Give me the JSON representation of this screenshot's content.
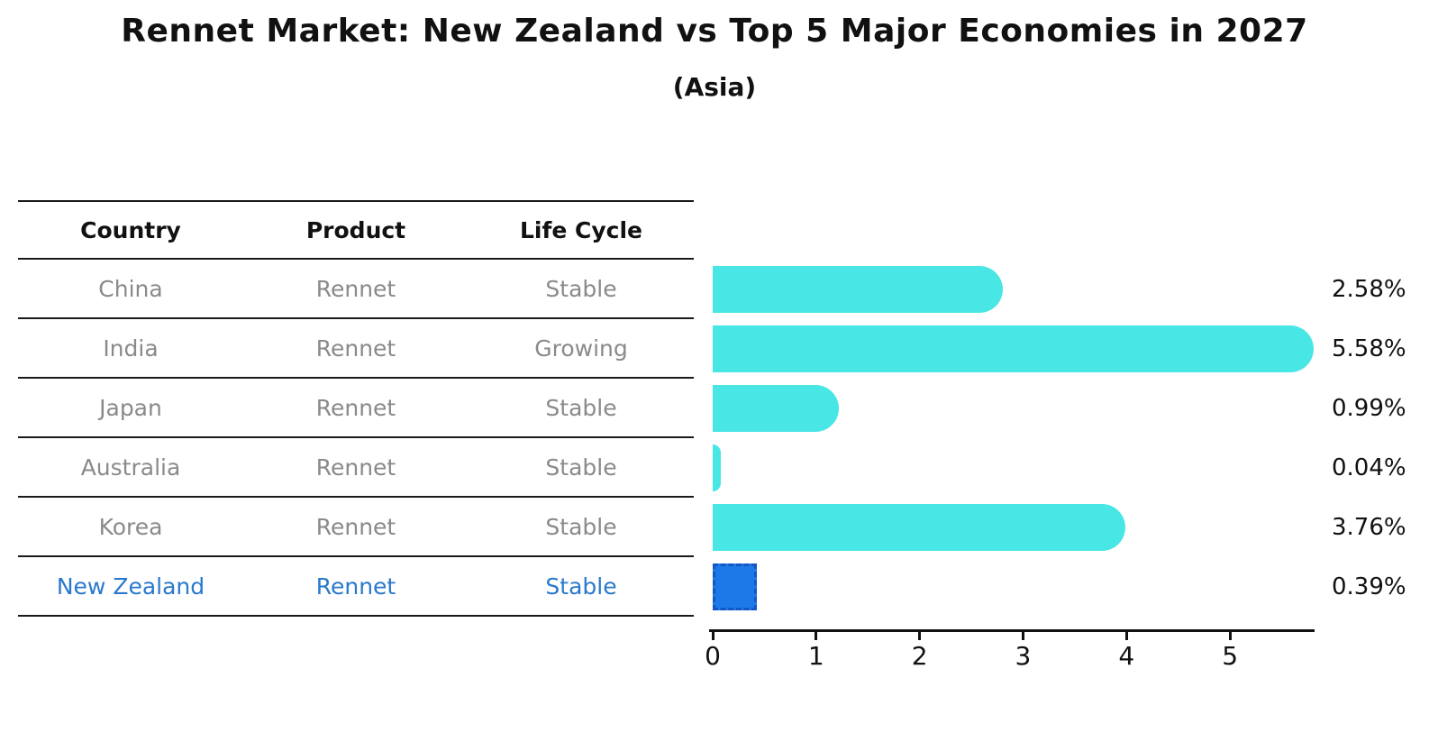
{
  "title": "Rennet Market: New Zealand vs Top 5 Major Economies in 2027",
  "subtitle": "(Asia)",
  "table": {
    "headers": [
      "Country",
      "Product",
      "Life Cycle"
    ]
  },
  "rows": [
    {
      "country": "China",
      "product": "Rennet",
      "life_cycle": "Stable",
      "value": 2.58,
      "label": "2.58%",
      "highlight": false
    },
    {
      "country": "India",
      "product": "Rennet",
      "life_cycle": "Growing",
      "value": 5.58,
      "label": "5.58%",
      "highlight": false
    },
    {
      "country": "Japan",
      "product": "Rennet",
      "life_cycle": "Stable",
      "value": 0.99,
      "label": "0.99%",
      "highlight": false
    },
    {
      "country": "Australia",
      "product": "Rennet",
      "life_cycle": "Stable",
      "value": 0.04,
      "label": "0.04%",
      "highlight": false
    },
    {
      "country": "Korea",
      "product": "Rennet",
      "life_cycle": "Stable",
      "value": 3.76,
      "label": "3.76%",
      "highlight": false
    },
    {
      "country": "New Zealand",
      "product": "Rennet",
      "life_cycle": "Stable",
      "value": 0.39,
      "label": "0.39%",
      "highlight": true
    }
  ],
  "chart_data": {
    "type": "bar",
    "orientation": "horizontal",
    "title": "Rennet Market: New Zealand vs Top 5 Major Economies in 2027",
    "subtitle": "(Asia)",
    "categories": [
      "China",
      "India",
      "Japan",
      "Australia",
      "Korea",
      "New Zealand"
    ],
    "values": [
      2.58,
      5.58,
      0.99,
      0.04,
      3.76,
      0.39
    ],
    "value_labels": [
      "2.58%",
      "5.58%",
      "0.99%",
      "0.04%",
      "3.76%",
      "0.39%"
    ],
    "xlabel": "",
    "ylabel": "",
    "xlim": [
      0,
      5.8
    ],
    "xticks": [
      0,
      1,
      2,
      3,
      4,
      5
    ],
    "grid": false,
    "legend": false,
    "highlight_category": "New Zealand"
  },
  "colors": {
    "bar": "#48e6e4",
    "highlight_bar": "#1e79e8",
    "highlight_border": "#1356c4",
    "highlight_text": "#2979cc",
    "table_text": "#8a8a8a",
    "heading_text": "#111111"
  }
}
